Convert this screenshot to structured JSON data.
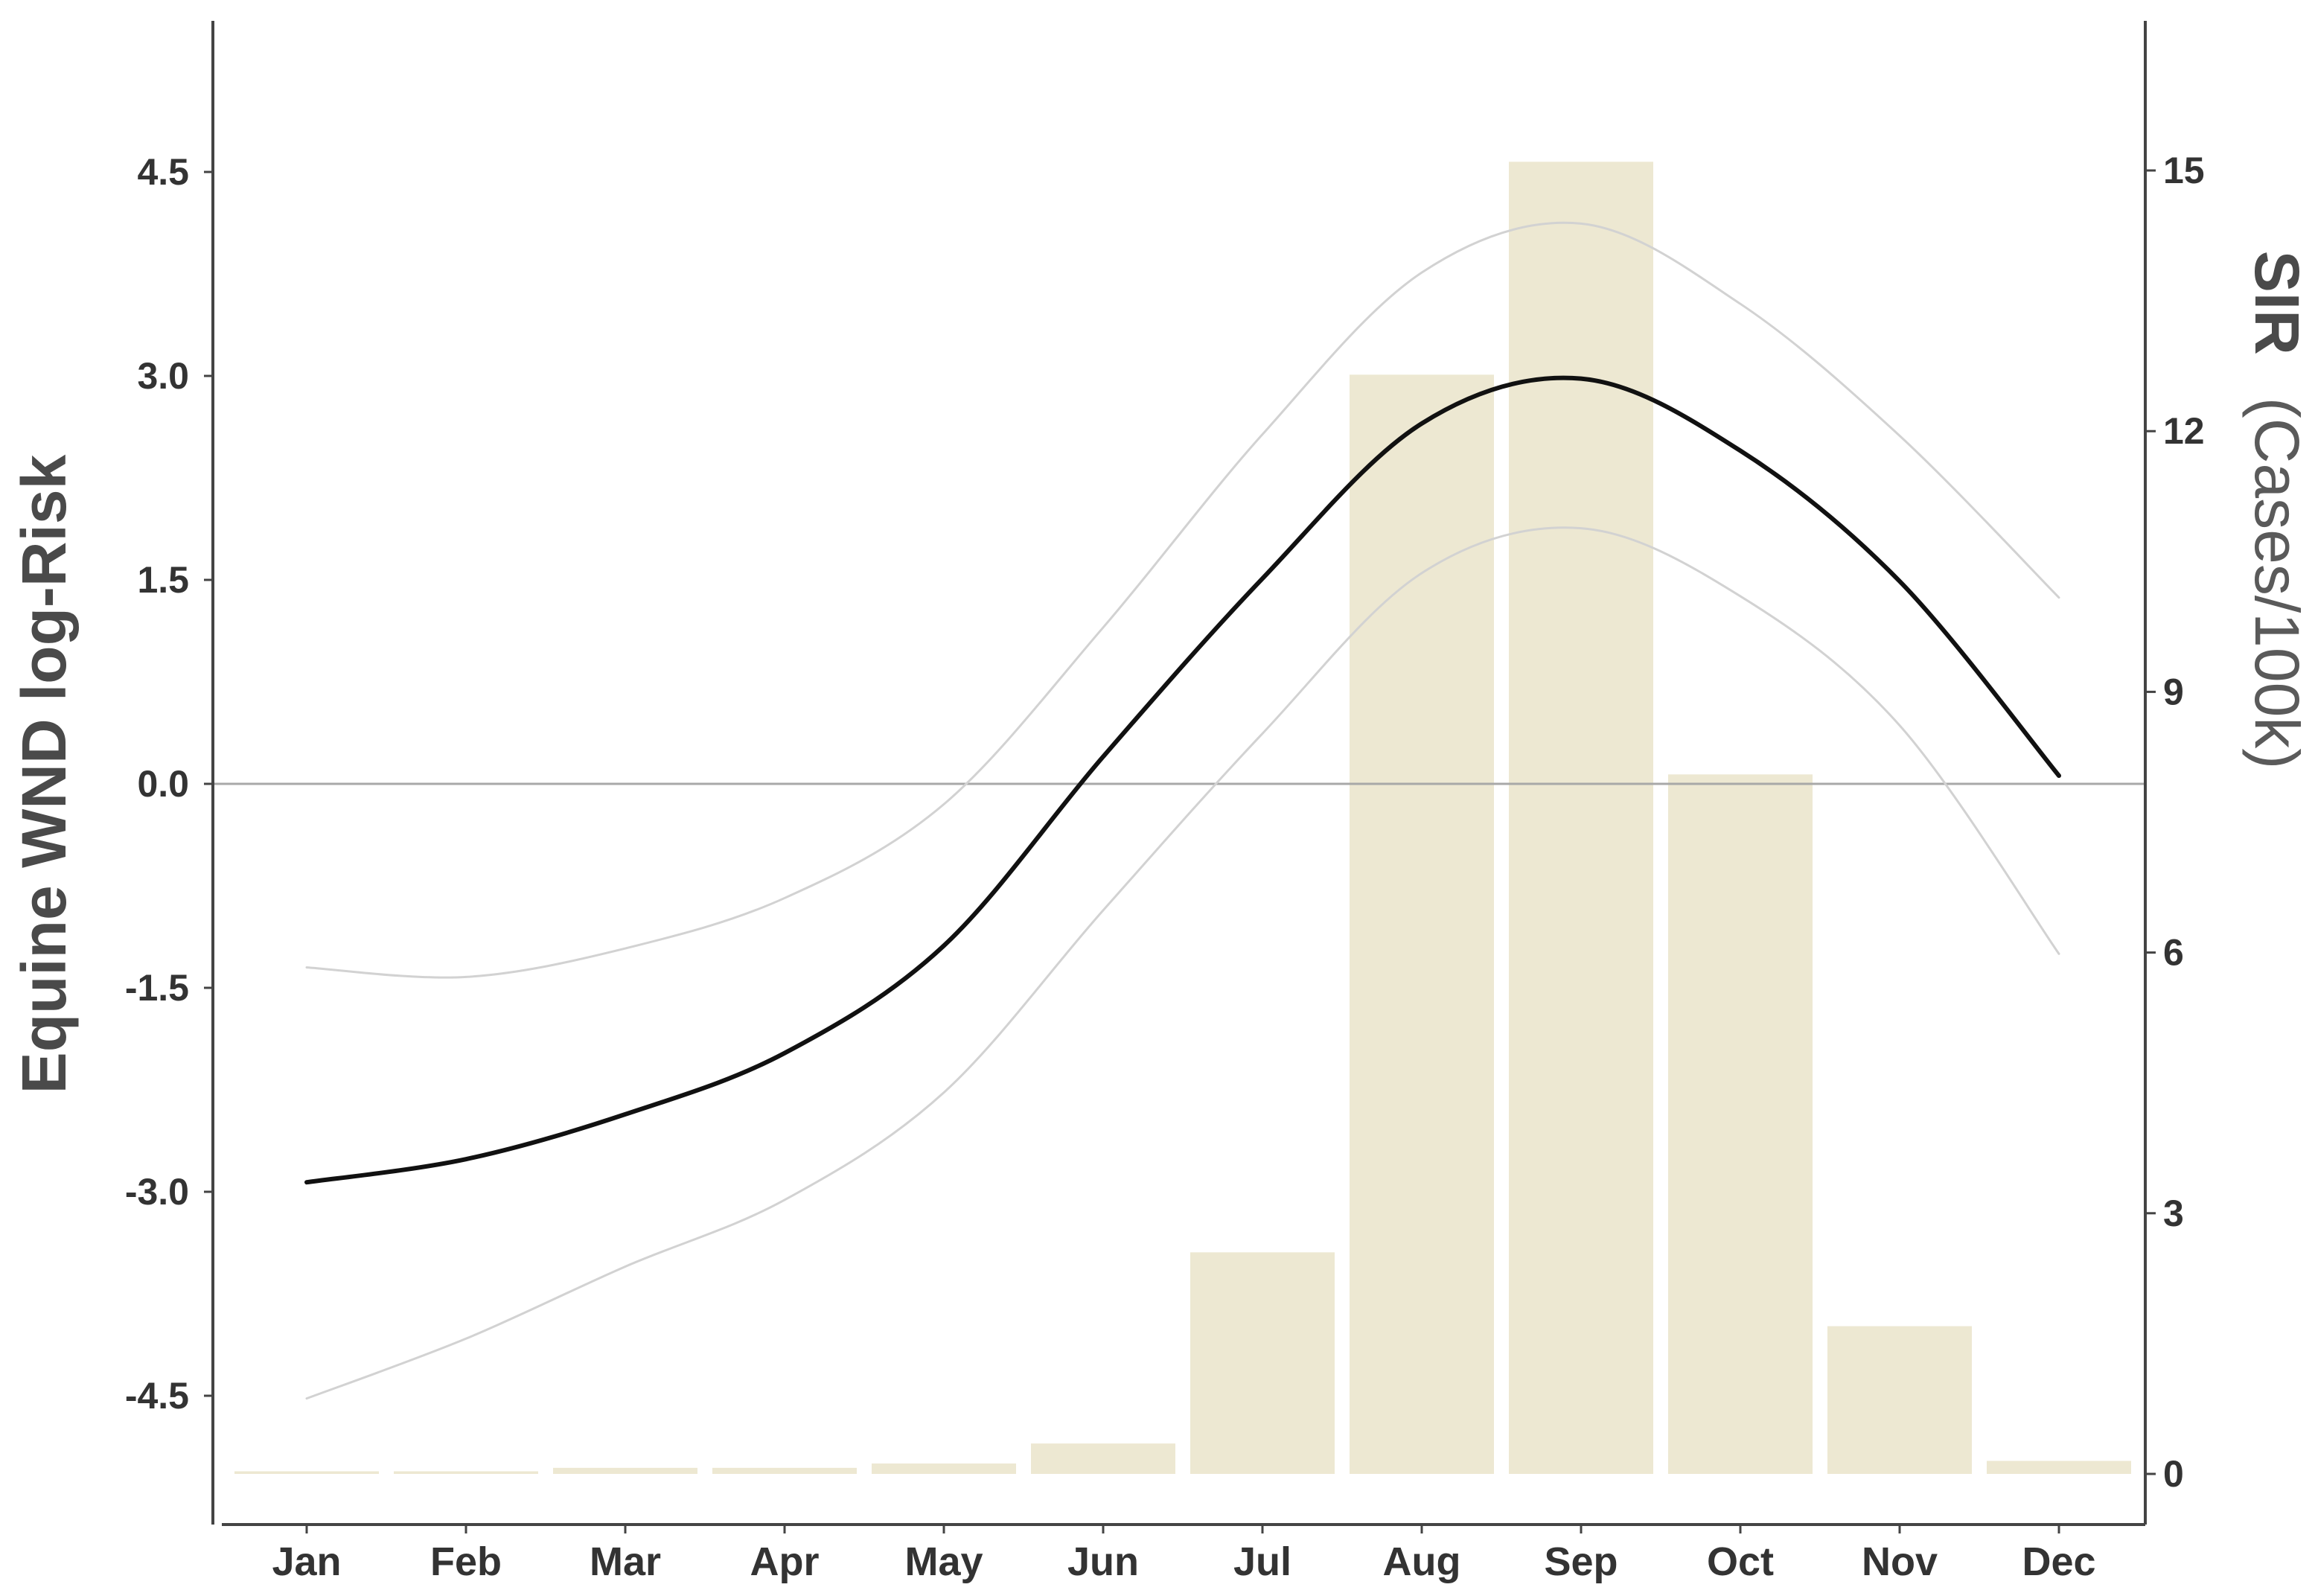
{
  "chart_data": {
    "type": "bar",
    "categories": [
      "Jan",
      "Feb",
      "Mar",
      "Apr",
      "May",
      "Jun",
      "Jul",
      "Aug",
      "Sep",
      "Oct",
      "Nov",
      "Dec"
    ],
    "y_left": {
      "label": "Equine WND log-Risk",
      "ylim": [
        -5.0,
        6.5
      ],
      "ticks": [
        4.5,
        3.0,
        1.5,
        0.0,
        -1.5,
        -3.0,
        -4.5
      ],
      "tick_labels": [
        "4.5",
        "3.0",
        "1.5",
        "0.0",
        "-1.5",
        "-3.0",
        "-4.5"
      ]
    },
    "y_right": {
      "label_bold": "SIR",
      "label_rest": "(Cases/100k)",
      "ylim": [
        -0.6,
        17.0
      ],
      "ticks": [
        15,
        12,
        9,
        6,
        3,
        0
      ],
      "tick_labels": [
        "15",
        "12",
        "9",
        "6",
        "3",
        "0"
      ]
    },
    "series": [
      {
        "kind": "bar",
        "axis": "right",
        "color": "#ede8d2",
        "values": [
          0.03,
          0.03,
          0.07,
          0.07,
          0.12,
          0.35,
          2.55,
          12.65,
          15.1,
          8.05,
          1.7,
          0.15
        ]
      },
      {
        "kind": "line",
        "axis": "left",
        "color": "#111111",
        "values": [
          -2.93,
          -2.76,
          -2.43,
          -1.98,
          -1.19,
          0.2,
          1.51,
          2.65,
          2.98,
          2.45,
          1.49,
          0.06
        ]
      },
      {
        "kind": "line",
        "axis": "left",
        "color": "#d2d2d2",
        "values": [
          -1.35,
          -1.42,
          -1.21,
          -0.84,
          -0.15,
          1.15,
          2.57,
          3.76,
          4.12,
          3.53,
          2.56,
          1.37
        ]
      },
      {
        "kind": "line",
        "axis": "left",
        "color": "#d2d2d2",
        "values": [
          -4.52,
          -4.08,
          -3.55,
          -3.06,
          -2.27,
          -0.93,
          0.37,
          1.55,
          1.88,
          1.38,
          0.43,
          -1.25
        ]
      }
    ],
    "reference_line": {
      "axis": "left",
      "value": 0.0,
      "color": "#a8a8a8"
    },
    "grid": false,
    "legend": "none"
  }
}
